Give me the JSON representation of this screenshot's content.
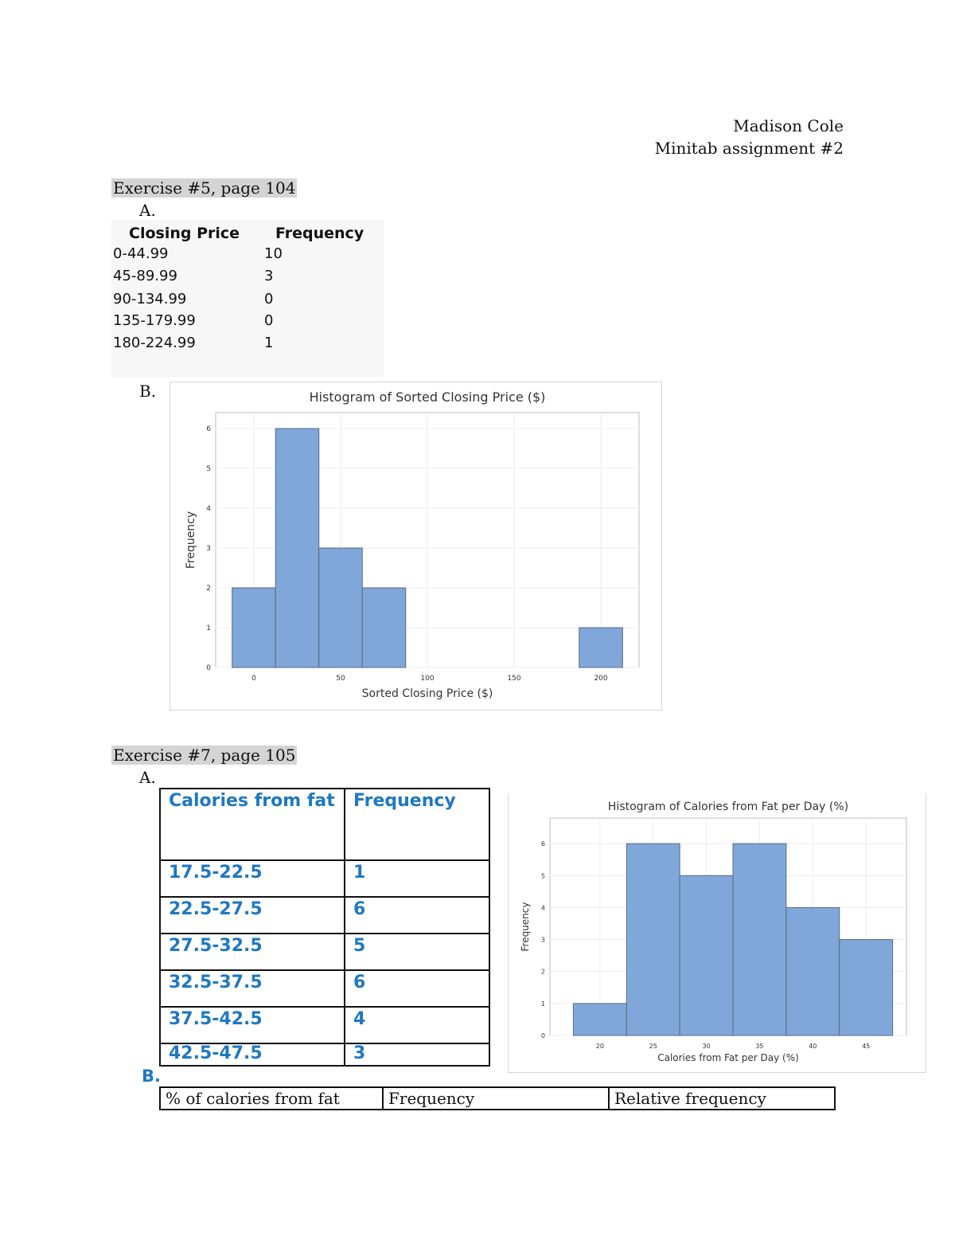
{
  "header": {
    "name": "Madison Cole",
    "assignment": "Minitab assignment #2"
  },
  "ex5": {
    "title": "Exercise #5, page 104",
    "part_a": "A.",
    "part_b": "B.",
    "table": {
      "headers": [
        "Closing Price",
        "Frequency"
      ],
      "rows": [
        [
          "0-44.99",
          "10"
        ],
        [
          "45-89.99",
          "3"
        ],
        [
          "90-134.99",
          "0"
        ],
        [
          "135-179.99",
          "0"
        ],
        [
          "180-224.99",
          "1"
        ]
      ]
    }
  },
  "ex7": {
    "title": "Exercise #7, page 105",
    "part_a": "A.",
    "part_b": "B.",
    "table": {
      "headers": [
        "Calories from fat",
        "Frequency"
      ],
      "rows": [
        [
          "17.5-22.5",
          "1"
        ],
        [
          "22.5-27.5",
          "6"
        ],
        [
          "27.5-32.5",
          "5"
        ],
        [
          "32.5-37.5",
          "6"
        ],
        [
          "37.5-42.5",
          "4"
        ],
        [
          "42.5-47.5",
          "3"
        ]
      ]
    },
    "table_b_headers": [
      "% of calories from fat",
      "Frequency",
      "Relative frequency"
    ]
  },
  "chart_data": [
    {
      "type": "bar",
      "title": "Histogram of Sorted Closing Price ($)",
      "xlabel": "Sorted Closing Price ($)",
      "ylabel": "Frequency",
      "bins": [
        [
          -12.5,
          12.5
        ],
        [
          12.5,
          37.5
        ],
        [
          37.5,
          62.5
        ],
        [
          62.5,
          87.5
        ],
        [
          187.5,
          212.5
        ]
      ],
      "values": [
        2,
        6,
        3,
        2,
        1
      ],
      "xlim": [
        -22,
        222
      ],
      "ylim": [
        0,
        6.4
      ],
      "xticks": [
        0,
        50,
        100,
        150,
        200
      ],
      "yticks": [
        0,
        1,
        2,
        3,
        4,
        5,
        6
      ],
      "bar_color": "#7fa7d9",
      "grid": true
    },
    {
      "type": "bar",
      "title": "Histogram of Calories from Fat per Day (%)",
      "xlabel": "Calories from Fat per Day (%)",
      "ylabel": "Frequency",
      "bins": [
        [
          17.5,
          22.5
        ],
        [
          22.5,
          27.5
        ],
        [
          27.5,
          32.5
        ],
        [
          32.5,
          37.5
        ],
        [
          37.5,
          42.5
        ],
        [
          42.5,
          47.5
        ]
      ],
      "values": [
        1,
        6,
        5,
        6,
        4,
        3
      ],
      "xlim": [
        15.3,
        48.8
      ],
      "ylim": [
        0,
        6.8
      ],
      "xticks": [
        20,
        25,
        30,
        35,
        40,
        45
      ],
      "yticks": [
        0,
        1,
        2,
        3,
        4,
        5,
        6
      ],
      "bar_color": "#7fa7d9",
      "grid": true
    }
  ]
}
